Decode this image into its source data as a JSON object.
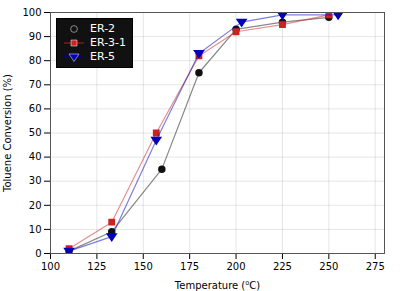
{
  "chart_data": {
    "type": "line",
    "xlabel": "Temperature (⁰C)",
    "ylabel": "Toluene Conversion (%)",
    "series": [
      {
        "name": "ER-2",
        "color": "#111111",
        "marker": "circle",
        "x": [
          110,
          133,
          160,
          180,
          200,
          225,
          250
        ],
        "values": [
          1,
          9,
          35,
          75,
          93,
          96,
          98
        ]
      },
      {
        "name": "ER-3-1",
        "color": "#cc2222",
        "marker": "square",
        "x": [
          110,
          133,
          157,
          180,
          200,
          225,
          250
        ],
        "values": [
          2,
          13,
          50,
          82,
          92,
          95,
          99
        ]
      },
      {
        "name": "ER-5",
        "color": "#0000bb",
        "marker": "triangle-down",
        "x": [
          110,
          133,
          157,
          180,
          203,
          225,
          255
        ],
        "values": [
          1,
          7,
          47,
          83,
          96,
          99,
          99
        ]
      }
    ],
    "xlim": [
      100,
      280
    ],
    "ylim": [
      0,
      100
    ],
    "xticks": [
      100,
      125,
      150,
      175,
      200,
      225,
      250,
      275
    ],
    "yticks": [
      0,
      10,
      20,
      30,
      40,
      50,
      60,
      70,
      80,
      90,
      100
    ],
    "grid": true,
    "legend": "upper left"
  }
}
